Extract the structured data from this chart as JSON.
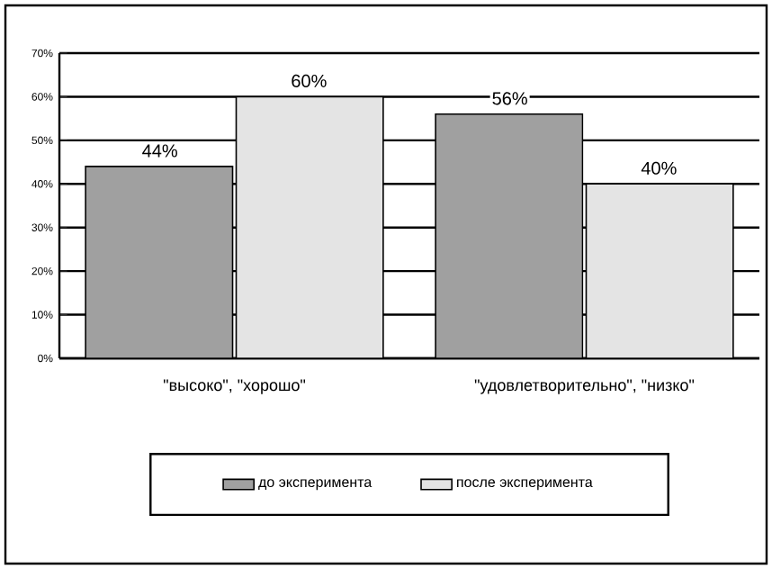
{
  "chart_data": {
    "type": "bar",
    "categories": [
      "\"высоко\", \"хорошо\"",
      "\"удовлетворительно\", \"низко\""
    ],
    "series": [
      {
        "name": "до эксперимента",
        "color": "#a0a0a0",
        "values": [
          44,
          56
        ],
        "value_labels": [
          "44%",
          "56%"
        ]
      },
      {
        "name": "после эксперимента",
        "color": "#e4e4e4",
        "values": [
          60,
          40
        ],
        "value_labels": [
          "60%",
          "40%"
        ]
      }
    ],
    "ylim": [
      0,
      70
    ],
    "yticks": [
      {
        "value": 0,
        "label": "0%"
      },
      {
        "value": 10,
        "label": "10%"
      },
      {
        "value": 20,
        "label": "20%"
      },
      {
        "value": 30,
        "label": "30%"
      },
      {
        "value": 40,
        "label": "40%"
      },
      {
        "value": 50,
        "label": "50%"
      },
      {
        "value": 60,
        "label": "60%"
      },
      {
        "value": 70,
        "label": "70%"
      }
    ],
    "grid": "y",
    "legend": "bottom"
  }
}
